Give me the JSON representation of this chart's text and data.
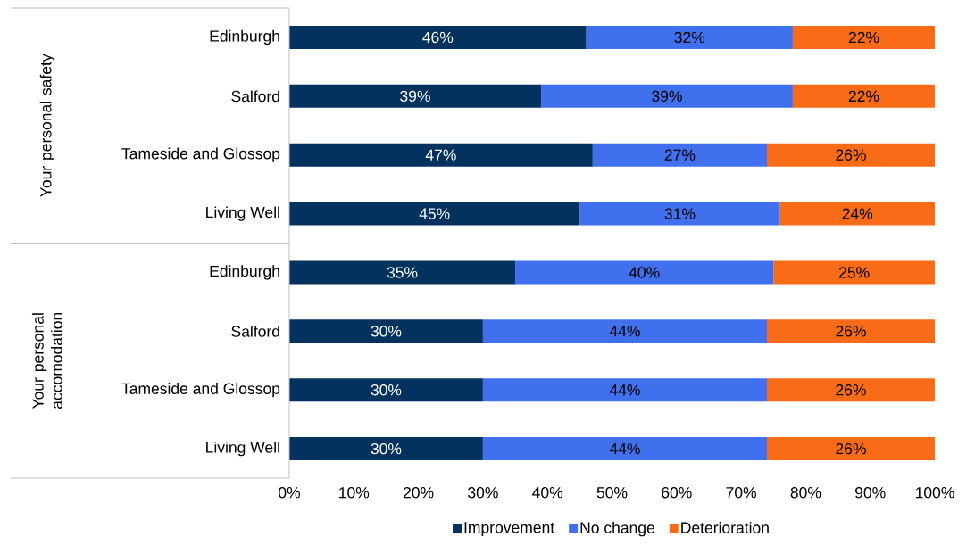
{
  "chart_data": {
    "type": "bar",
    "orientation": "horizontal",
    "stacked": true,
    "categories": [
      "Edinburgh",
      "Salford",
      "Tameside and Glossop",
      "Living Well",
      "Edinburgh",
      "Salford",
      "Tameside and Glossop",
      "Living Well"
    ],
    "series": [
      {
        "name": "Improvement",
        "color": "#03325f",
        "values": [
          46,
          39,
          47,
          45,
          35,
          30,
          30,
          30
        ],
        "value_labels": [
          "46%",
          "39%",
          "47%",
          "45%",
          "35%",
          "30%",
          "30%",
          "30%"
        ]
      },
      {
        "name": "No change",
        "color": "#4170ef",
        "values": [
          32,
          39,
          27,
          31,
          40,
          44,
          44,
          44
        ],
        "value_labels": [
          "32%",
          "39%",
          "27%",
          "31%",
          "40%",
          "44%",
          "44%",
          "44%"
        ]
      },
      {
        "name": "Deterioration",
        "color": "#fa6b17",
        "values": [
          22,
          22,
          26,
          24,
          25,
          26,
          26,
          26
        ],
        "value_labels": [
          "22%",
          "22%",
          "26%",
          "24%",
          "25%",
          "26%",
          "26%",
          "26%"
        ]
      }
    ],
    "xlim": [
      0,
      100
    ],
    "xticks": [
      {
        "value": 0,
        "label": "0%"
      },
      {
        "value": 10,
        "label": "10%"
      },
      {
        "value": 20,
        "label": "20%"
      },
      {
        "value": 30,
        "label": "30%"
      },
      {
        "value": 40,
        "label": "40%"
      },
      {
        "value": 50,
        "label": "50%"
      },
      {
        "value": 60,
        "label": "60%"
      },
      {
        "value": 70,
        "label": "70%"
      },
      {
        "value": 80,
        "label": "80%"
      },
      {
        "value": 90,
        "label": "90%"
      },
      {
        "value": 100,
        "label": "100%"
      }
    ],
    "legend": "bottom",
    "annotations": [
      "Your personal safety",
      "Your personal accomodation"
    ]
  }
}
